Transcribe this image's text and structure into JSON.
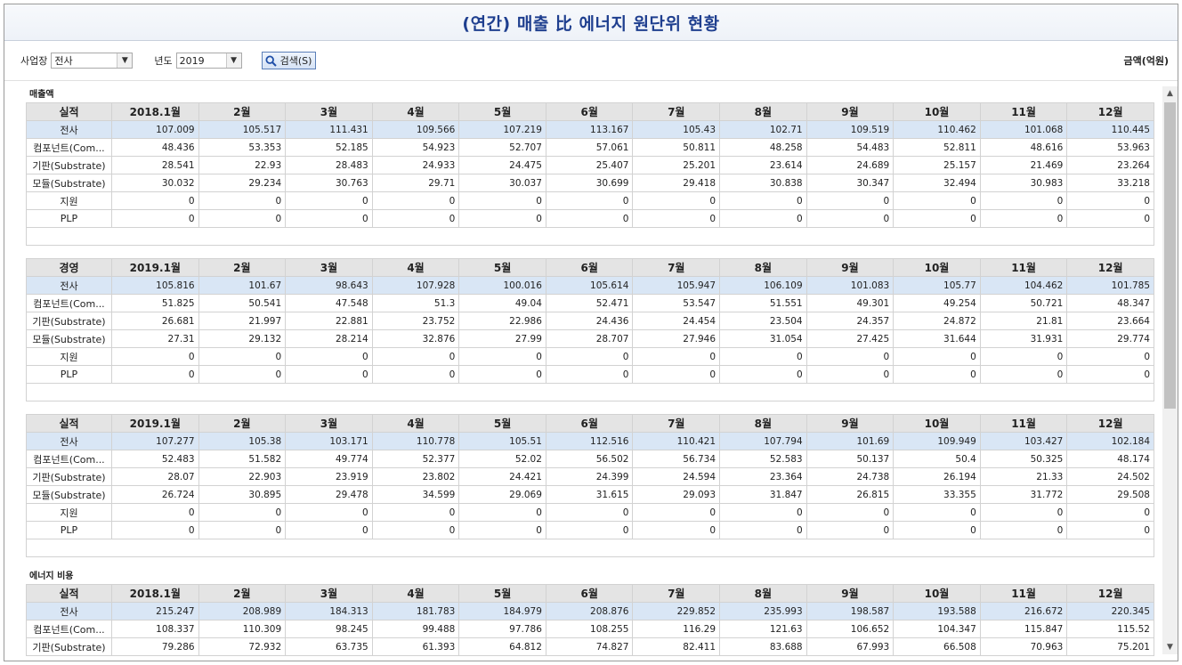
{
  "title": "(연간) 매출 比 에너지 원단위 현황",
  "filters": {
    "site_label": "사업장",
    "site_value": "전사",
    "year_label": "년도",
    "year_value": "2019",
    "search_label": "검색(S)"
  },
  "unit_label": "금액(억원)",
  "months": [
    "2월",
    "3월",
    "4월",
    "5월",
    "6월",
    "7월",
    "8월",
    "9월",
    "10월",
    "11월",
    "12월"
  ],
  "sections": [
    {
      "label": "매출액",
      "corner": "실적",
      "first_month": "2018.1월",
      "rows": [
        {
          "name": "전사",
          "values": [
            "107.009",
            "105.517",
            "111.431",
            "109.566",
            "107.219",
            "113.167",
            "105.43",
            "102.71",
            "109.519",
            "110.462",
            "101.068",
            "110.445"
          ]
        },
        {
          "name": "컴포넌트(Com...",
          "values": [
            "48.436",
            "53.353",
            "52.185",
            "54.923",
            "52.707",
            "57.061",
            "50.811",
            "48.258",
            "54.483",
            "52.811",
            "48.616",
            "53.963"
          ]
        },
        {
          "name": "기판(Substrate)",
          "values": [
            "28.541",
            "22.93",
            "28.483",
            "24.933",
            "24.475",
            "25.407",
            "25.201",
            "23.614",
            "24.689",
            "25.157",
            "21.469",
            "23.264"
          ]
        },
        {
          "name": "모듈(Substrate)",
          "values": [
            "30.032",
            "29.234",
            "30.763",
            "29.71",
            "30.037",
            "30.699",
            "29.418",
            "30.838",
            "30.347",
            "32.494",
            "30.983",
            "33.218"
          ]
        },
        {
          "name": "지원",
          "values": [
            "0",
            "0",
            "0",
            "0",
            "0",
            "0",
            "0",
            "0",
            "0",
            "0",
            "0",
            "0"
          ]
        },
        {
          "name": "PLP",
          "values": [
            "0",
            "0",
            "0",
            "0",
            "0",
            "0",
            "0",
            "0",
            "0",
            "0",
            "0",
            "0"
          ]
        }
      ]
    },
    {
      "label": "",
      "corner": "경영",
      "first_month": "2019.1월",
      "rows": [
        {
          "name": "전사",
          "values": [
            "105.816",
            "101.67",
            "98.643",
            "107.928",
            "100.016",
            "105.614",
            "105.947",
            "106.109",
            "101.083",
            "105.77",
            "104.462",
            "101.785"
          ]
        },
        {
          "name": "컴포넌트(Com...",
          "values": [
            "51.825",
            "50.541",
            "47.548",
            "51.3",
            "49.04",
            "52.471",
            "53.547",
            "51.551",
            "49.301",
            "49.254",
            "50.721",
            "48.347"
          ]
        },
        {
          "name": "기판(Substrate)",
          "values": [
            "26.681",
            "21.997",
            "22.881",
            "23.752",
            "22.986",
            "24.436",
            "24.454",
            "23.504",
            "24.357",
            "24.872",
            "21.81",
            "23.664"
          ]
        },
        {
          "name": "모듈(Substrate)",
          "values": [
            "27.31",
            "29.132",
            "28.214",
            "32.876",
            "27.99",
            "28.707",
            "27.946",
            "31.054",
            "27.425",
            "31.644",
            "31.931",
            "29.774"
          ]
        },
        {
          "name": "지원",
          "values": [
            "0",
            "0",
            "0",
            "0",
            "0",
            "0",
            "0",
            "0",
            "0",
            "0",
            "0",
            "0"
          ]
        },
        {
          "name": "PLP",
          "values": [
            "0",
            "0",
            "0",
            "0",
            "0",
            "0",
            "0",
            "0",
            "0",
            "0",
            "0",
            "0"
          ]
        }
      ]
    },
    {
      "label": "",
      "corner": "실적",
      "first_month": "2019.1월",
      "rows": [
        {
          "name": "전사",
          "values": [
            "107.277",
            "105.38",
            "103.171",
            "110.778",
            "105.51",
            "112.516",
            "110.421",
            "107.794",
            "101.69",
            "109.949",
            "103.427",
            "102.184"
          ]
        },
        {
          "name": "컴포넌트(Com...",
          "values": [
            "52.483",
            "51.582",
            "49.774",
            "52.377",
            "52.02",
            "56.502",
            "56.734",
            "52.583",
            "50.137",
            "50.4",
            "50.325",
            "48.174"
          ]
        },
        {
          "name": "기판(Substrate)",
          "values": [
            "28.07",
            "22.903",
            "23.919",
            "23.802",
            "24.421",
            "24.399",
            "24.594",
            "23.364",
            "24.738",
            "26.194",
            "21.33",
            "24.502"
          ]
        },
        {
          "name": "모듈(Substrate)",
          "values": [
            "26.724",
            "30.895",
            "29.478",
            "34.599",
            "29.069",
            "31.615",
            "29.093",
            "31.847",
            "26.815",
            "33.355",
            "31.772",
            "29.508"
          ]
        },
        {
          "name": "지원",
          "values": [
            "0",
            "0",
            "0",
            "0",
            "0",
            "0",
            "0",
            "0",
            "0",
            "0",
            "0",
            "0"
          ]
        },
        {
          "name": "PLP",
          "values": [
            "0",
            "0",
            "0",
            "0",
            "0",
            "0",
            "0",
            "0",
            "0",
            "0",
            "0",
            "0"
          ]
        }
      ]
    },
    {
      "label": "에너지 비용",
      "corner": "실적",
      "first_month": "2018.1월",
      "rows": [
        {
          "name": "전사",
          "values": [
            "215.247",
            "208.989",
            "184.313",
            "181.783",
            "184.979",
            "208.876",
            "229.852",
            "235.993",
            "198.587",
            "193.588",
            "216.672",
            "220.345"
          ]
        },
        {
          "name": "컴포넌트(Com...",
          "values": [
            "108.337",
            "110.309",
            "98.245",
            "99.488",
            "97.786",
            "108.255",
            "116.29",
            "121.63",
            "106.652",
            "104.347",
            "115.847",
            "115.52"
          ]
        },
        {
          "name": "기판(Substrate)",
          "values": [
            "79.286",
            "72.932",
            "63.735",
            "61.393",
            "64.812",
            "74.827",
            "82.411",
            "83.688",
            "67.993",
            "66.508",
            "70.963",
            "75.201"
          ]
        }
      ]
    }
  ],
  "colors": {
    "title": "#1f3f8f",
    "highlight_row": "#d9e6f5",
    "header_bg": "#e4e4e4"
  },
  "icons": {
    "search": "search-icon",
    "dropdown": "chevron-down-icon"
  }
}
